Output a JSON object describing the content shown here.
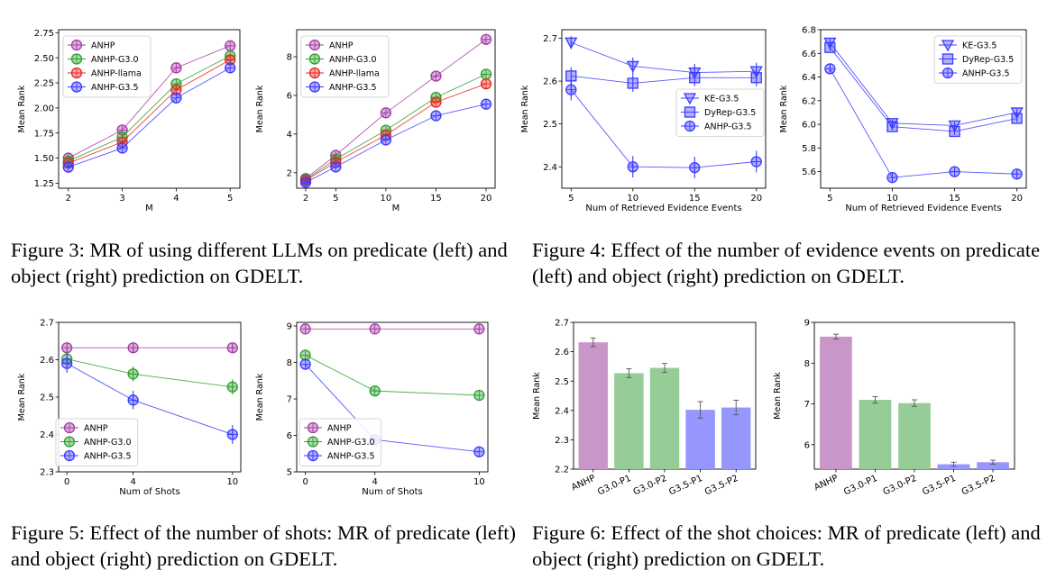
{
  "captions": {
    "fig3": "Figure 3:  MR of using different LLMs on predicate (left) and object (right) prediction on GDELT.",
    "fig4": "Figure 4:  Effect of the number of evidence events on predicate (left) and object (right) prediction on GDELT.",
    "fig5": "Figure 5: Effect of the number of shots: MR of predicate (left) and object (right) prediction on GDELT.",
    "fig6": "Figure 6: Effect of the shot choices: MR of predicate (left) and object (right) prediction on GDELT."
  },
  "chart_data": [
    {
      "id": "fig3-left",
      "type": "line",
      "xlabel": "M",
      "ylabel": "Mean Rank",
      "x": [
        2,
        3,
        4,
        5
      ],
      "xticks": [
        "2",
        "3",
        "4",
        "5"
      ],
      "ylim": [
        1.2,
        2.78
      ],
      "yticks": [
        "1.25",
        "1.50",
        "1.75",
        "2.00",
        "2.25",
        "2.50",
        "2.75"
      ],
      "legend": "top-left",
      "grid": false,
      "series": [
        {
          "name": "ANHP",
          "color": "#a63ba6",
          "values": [
            1.5,
            1.78,
            2.4,
            2.62
          ]
        },
        {
          "name": "ANHP-G3.0",
          "color": "#2ca02c",
          "values": [
            1.47,
            1.71,
            2.24,
            2.52
          ]
        },
        {
          "name": "ANHP-llama",
          "color": "#e8281e",
          "values": [
            1.45,
            1.66,
            2.18,
            2.48
          ]
        },
        {
          "name": "ANHP-G3.5",
          "color": "#3a3aff",
          "values": [
            1.41,
            1.6,
            2.1,
            2.4
          ]
        }
      ]
    },
    {
      "id": "fig3-right",
      "type": "line",
      "xlabel": "M",
      "ylabel": "Mean Rank",
      "x": [
        2,
        5,
        10,
        15,
        20
      ],
      "xticks": [
        "2",
        "5",
        "10",
        "15",
        "20"
      ],
      "ylim": [
        1.2,
        9.4
      ],
      "yticks": [
        "2",
        "4",
        "6",
        "8"
      ],
      "legend": "top-left",
      "grid": false,
      "series": [
        {
          "name": "ANHP",
          "color": "#a63ba6",
          "values": [
            1.7,
            2.9,
            5.1,
            7.0,
            8.9
          ]
        },
        {
          "name": "ANHP-G3.0",
          "color": "#2ca02c",
          "values": [
            1.65,
            2.7,
            4.2,
            5.9,
            7.1
          ]
        },
        {
          "name": "ANHP-llama",
          "color": "#e8281e",
          "values": [
            1.6,
            2.55,
            3.95,
            5.65,
            6.6
          ]
        },
        {
          "name": "ANHP-G3.5",
          "color": "#3a3aff",
          "values": [
            1.5,
            2.3,
            3.7,
            4.95,
            5.55
          ]
        }
      ]
    },
    {
      "id": "fig4-left",
      "type": "line",
      "xlabel": "Num of Retrieved Evidence Events",
      "ylabel": "Mean Rank",
      "x": [
        5,
        10,
        15,
        20
      ],
      "xticks": [
        "5",
        "10",
        "15",
        "20"
      ],
      "ylim": [
        2.35,
        2.72
      ],
      "yticks": [
        "2.4",
        "2.5",
        "2.6",
        "2.7"
      ],
      "legend": "center-right",
      "grid": false,
      "series": [
        {
          "name": "KE-G3.5",
          "color": "#3a3aff",
          "marker": "triangle",
          "values": [
            2.69,
            2.635,
            2.62,
            2.623
          ],
          "err": [
            0.015,
            0.02,
            0.02,
            0.02
          ]
        },
        {
          "name": "DyRep-G3.5",
          "color": "#3a3aff",
          "marker": "square",
          "values": [
            2.612,
            2.595,
            2.608,
            2.608
          ],
          "err": [
            0.02,
            0.02,
            0.02,
            0.02
          ]
        },
        {
          "name": "ANHP-G3.5",
          "color": "#3a3aff",
          "marker": "circle",
          "values": [
            2.58,
            2.4,
            2.398,
            2.412
          ],
          "err": [
            0.025,
            0.025,
            0.025,
            0.025
          ]
        }
      ]
    },
    {
      "id": "fig4-right",
      "type": "line",
      "xlabel": "Num of Retrieved Evidence Events",
      "ylabel": "Mean Rank",
      "x": [
        5,
        10,
        15,
        20
      ],
      "xticks": [
        "5",
        "10",
        "15",
        "20"
      ],
      "ylim": [
        5.46,
        6.8
      ],
      "yticks": [
        "5.6",
        "5.8",
        "6.0",
        "6.2",
        "6.4",
        "6.6",
        "6.8"
      ],
      "legend": "top-right",
      "grid": false,
      "series": [
        {
          "name": "KE-G3.5",
          "color": "#3a3aff",
          "marker": "triangle",
          "values": [
            6.69,
            6.01,
            5.99,
            6.1
          ],
          "err": [
            0.03,
            0.03,
            0.03,
            0.03
          ]
        },
        {
          "name": "DyRep-G3.5",
          "color": "#3a3aff",
          "marker": "square",
          "values": [
            6.65,
            5.98,
            5.94,
            6.05
          ],
          "err": [
            0.03,
            0.03,
            0.03,
            0.03
          ]
        },
        {
          "name": "ANHP-G3.5",
          "color": "#3a3aff",
          "marker": "circle",
          "values": [
            6.47,
            5.55,
            5.6,
            5.58
          ],
          "err": [
            0.03,
            0.03,
            0.03,
            0.03
          ]
        }
      ]
    },
    {
      "id": "fig5-left",
      "type": "line",
      "xlabel": "Num of Shots",
      "ylabel": "Mean Rank",
      "x": [
        0,
        4,
        10
      ],
      "xticks": [
        "0",
        "4",
        "10"
      ],
      "ylim": [
        2.3,
        2.7
      ],
      "yticks": [
        "2.3",
        "2.4",
        "2.5",
        "2.6",
        "2.7"
      ],
      "legend": "bottom-left",
      "grid": false,
      "series": [
        {
          "name": "ANHP",
          "color": "#a63ba6",
          "values": [
            2.632,
            2.632,
            2.632
          ],
          "err": [
            0.012,
            0.012,
            0.012
          ]
        },
        {
          "name": "ANHP-G3.0",
          "color": "#2ca02c",
          "values": [
            2.602,
            2.562,
            2.527
          ],
          "err": [
            0.02,
            0.02,
            0.02
          ]
        },
        {
          "name": "ANHP-G3.5",
          "color": "#3a3aff",
          "values": [
            2.59,
            2.492,
            2.4
          ],
          "err": [
            0.025,
            0.025,
            0.025
          ]
        }
      ]
    },
    {
      "id": "fig5-right",
      "type": "line",
      "xlabel": "Num of Shots",
      "ylabel": "Mean Rank",
      "x": [
        0,
        4,
        10
      ],
      "xticks": [
        "0",
        "4",
        "10"
      ],
      "ylim": [
        5,
        9.1
      ],
      "yticks": [
        "5",
        "6",
        "7",
        "8",
        "9"
      ],
      "legend": "bottom-left",
      "grid": false,
      "series": [
        {
          "name": "ANHP",
          "color": "#a63ba6",
          "values": [
            8.92,
            8.92,
            8.92
          ]
        },
        {
          "name": "ANHP-G3.0",
          "color": "#2ca02c",
          "values": [
            8.2,
            7.22,
            7.1
          ]
        },
        {
          "name": "ANHP-G3.5",
          "color": "#3a3aff",
          "values": [
            7.95,
            5.88,
            5.55
          ]
        }
      ]
    },
    {
      "id": "fig6-left",
      "type": "bar",
      "ylabel": "Mean Rank",
      "categories": [
        "ANHP",
        "G3.0-P1",
        "G3.0-P2",
        "G3.5-P1",
        "G3.5-P2"
      ],
      "values": [
        2.632,
        2.527,
        2.545,
        2.402,
        2.41
      ],
      "err": [
        0.015,
        0.015,
        0.015,
        0.028,
        0.025
      ],
      "colors": [
        "#c896c8",
        "#96cd96",
        "#96cd96",
        "#9696ff",
        "#9696ff"
      ],
      "ylim": [
        2.2,
        2.7
      ],
      "yticks": [
        "2.2",
        "2.3",
        "2.4",
        "2.5",
        "2.6",
        "2.7"
      ],
      "grid": false
    },
    {
      "id": "fig6-right",
      "type": "bar",
      "ylabel": "Mean Rank",
      "categories": [
        "ANHP",
        "G3.0-P1",
        "G3.0-P2",
        "G3.5-P1",
        "G3.5-P2"
      ],
      "values": [
        8.65,
        7.1,
        7.02,
        5.52,
        5.57
      ],
      "err": [
        0.06,
        0.08,
        0.08,
        0.05,
        0.05
      ],
      "colors": [
        "#c896c8",
        "#96cd96",
        "#96cd96",
        "#9696ff",
        "#9696ff"
      ],
      "ylim": [
        5.4,
        9.0
      ],
      "yticks": [
        "6",
        "7",
        "8",
        "9"
      ],
      "grid": false
    }
  ]
}
